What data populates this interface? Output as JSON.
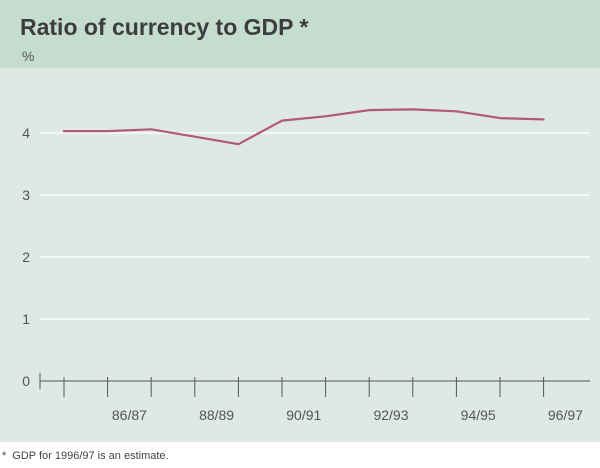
{
  "chart_data": {
    "type": "line",
    "title": "Ratio of currency to GDP *",
    "ylabel": "%",
    "xlabel": "",
    "ylim": [
      0,
      4.5
    ],
    "yticks": [
      "0",
      "1",
      "2",
      "3",
      "4"
    ],
    "xtick_labels": [
      "86/87",
      "88/89",
      "90/91",
      "92/93",
      "94/95",
      "96/97"
    ],
    "x": [
      "85/86",
      "86/87",
      "87/88",
      "88/89",
      "89/90",
      "90/91",
      "91/92",
      "92/93",
      "93/94",
      "94/95",
      "95/96",
      "96/97"
    ],
    "series": [
      {
        "name": "",
        "color": "#b15a78",
        "values": [
          4.03,
          4.03,
          4.06,
          3.94,
          3.82,
          4.2,
          4.27,
          4.37,
          4.38,
          4.35,
          4.24,
          4.22
        ]
      }
    ],
    "grid": true
  },
  "footnote": {
    "mark": "*",
    "text": "GDP for 1996/97 is an estimate."
  }
}
